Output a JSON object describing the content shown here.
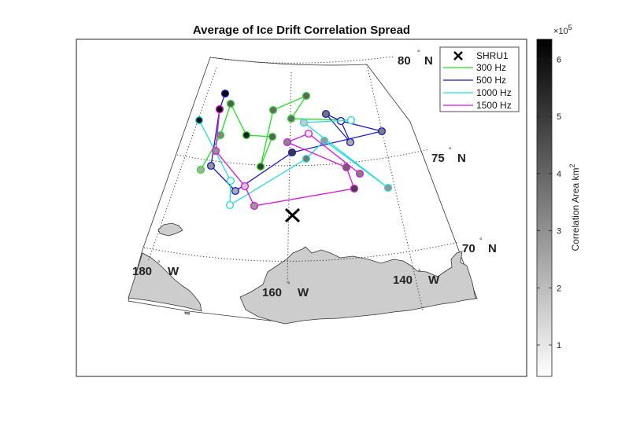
{
  "chart_data": {
    "type": "scatter",
    "title": "Average of Ice Drift Correlation Spread",
    "projection": "polar map",
    "lat_labels": [
      {
        "deg": "80",
        "hemi": "N"
      },
      {
        "deg": "75",
        "hemi": "N"
      },
      {
        "deg": "70",
        "hemi": "N"
      }
    ],
    "lon_labels": [
      {
        "deg": "180",
        "hemi": "W"
      },
      {
        "deg": "160",
        "hemi": "W"
      },
      {
        "deg": "140",
        "hemi": "W"
      }
    ],
    "marker": {
      "name": "SHRU1",
      "symbol": "x",
      "color": "#000000"
    },
    "series": [
      {
        "name": "300 Hz",
        "color": "#22dd22",
        "points": [
          [
            255,
            216
          ],
          [
            280,
            172
          ],
          [
            293,
            132
          ],
          [
            313,
            172
          ],
          [
            346,
            174
          ],
          [
            331,
            212
          ],
          [
            347,
            140
          ],
          [
            389,
            122
          ],
          [
            370,
            151
          ],
          [
            446,
            153
          ]
        ],
        "values": [
          2.4,
          3.3,
          4.3,
          5.6,
          4.2,
          5.0,
          4.0,
          4.1,
          3.9,
          null
        ]
      },
      {
        "name": "500 Hz",
        "color": "#1a1acc",
        "points": [
          [
            286,
            119
          ],
          [
            279,
            139
          ],
          [
            268,
            211
          ],
          [
            299,
            243
          ],
          [
            371,
            194
          ],
          [
            485,
            167
          ],
          [
            433,
            154
          ],
          [
            445,
            181
          ],
          [
            414,
            145
          ],
          [
            433,
            154
          ]
        ],
        "values": [
          6.3,
          6.2,
          2.9,
          2.4,
          5.0,
          3.4,
          1.3,
          2.4,
          3.6,
          null
        ]
      },
      {
        "name": "1000 Hz",
        "color": "#22dddd",
        "points": [
          [
            253,
            153
          ],
          [
            293,
            230
          ],
          [
            292,
            261
          ],
          [
            389,
            202
          ],
          [
            412,
            179
          ],
          [
            493,
            239
          ],
          [
            386,
            156
          ],
          [
            446,
            153
          ]
        ],
        "values": [
          5.9,
          0.6,
          0.6,
          3.6,
          2.8,
          2.9,
          1.7,
          null
        ]
      },
      {
        "name": "1500 Hz",
        "color": "#dd11dd",
        "points": [
          [
            279,
            139
          ],
          [
            274,
            192
          ],
          [
            311,
            237
          ],
          [
            323,
            262
          ],
          [
            450,
            240
          ],
          [
            440,
            213
          ],
          [
            365,
            181
          ],
          [
            392,
            170
          ],
          [
            457,
            221
          ]
        ],
        "values": [
          6.2,
          3.0,
          1.6,
          2.8,
          4.8,
          4.0,
          3.2,
          1.0,
          3.4
        ]
      }
    ],
    "colorbar": {
      "label": "Correlation Area km",
      "label_superscript": "2",
      "multiplier": "×10",
      "multiplier_exp": "5",
      "ticks": [
        "1",
        "2",
        "3",
        "4",
        "5",
        "6"
      ],
      "range": [
        0.45,
        6.35
      ]
    },
    "land_color": "#cdcdcd"
  }
}
